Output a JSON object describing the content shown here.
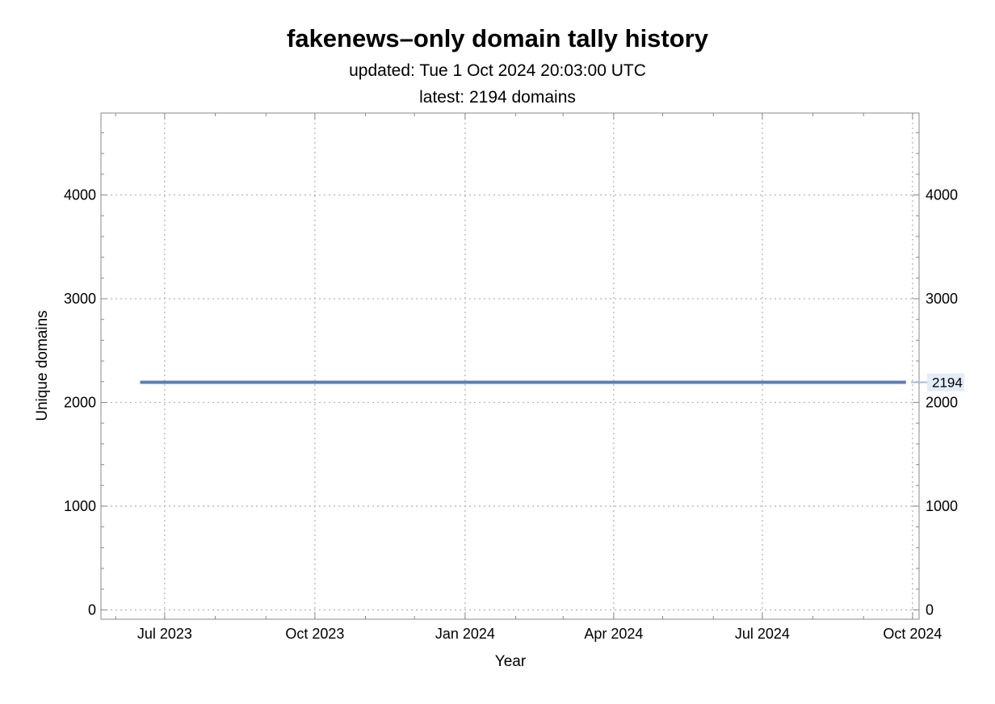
{
  "chart_data": {
    "type": "line",
    "title": "fakenews–only domain tally history",
    "subtitles": [
      "updated: Tue 1 Oct 2024 20:03:00 UTC",
      "latest: 2194 domains"
    ],
    "xlabel": "Year",
    "ylabel": "Unique domains",
    "x_ticks": [
      {
        "date": "2023-07-01",
        "label": "Jul 2023"
      },
      {
        "date": "2023-10-01",
        "label": "Oct 2023"
      },
      {
        "date": "2024-01-01",
        "label": "Jan 2024"
      },
      {
        "date": "2024-04-01",
        "label": "Apr 2024"
      },
      {
        "date": "2024-07-01",
        "label": "Jul 2024"
      },
      {
        "date": "2024-10-01",
        "label": "Oct 2024"
      }
    ],
    "y_ticks": [
      0,
      1000,
      2000,
      3000,
      4000
    ],
    "ylim": [
      -90,
      4790
    ],
    "xlim": [
      "2023-05-23",
      "2024-10-05"
    ],
    "grid": true,
    "series": [
      {
        "color": "#5b7fb5",
        "points": [
          {
            "x": "2023-06-16",
            "y": 2194
          },
          {
            "x": "2024-09-27",
            "y": 2194
          }
        ]
      }
    ],
    "end_label": "2194"
  }
}
